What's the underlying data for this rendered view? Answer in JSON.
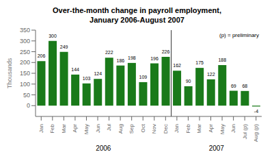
{
  "chart_data": {
    "type": "bar",
    "title": "Over-the-month change in payroll employment,\nJanuary 2006-August 2007",
    "categories": [
      "Jan",
      "Feb",
      "Mar",
      "Apr",
      "May",
      "Jun",
      "Jul",
      "Aug",
      "Sep",
      "Oct",
      "Nov",
      "Dec",
      "Jan",
      "Feb",
      "Mar",
      "Apr",
      "May",
      "Jun",
      "Jul (p)",
      "Aug (p)"
    ],
    "values": [
      206,
      300,
      249,
      144,
      103,
      124,
      222,
      186,
      198,
      109,
      196,
      226,
      162,
      90,
      175,
      122,
      188,
      69,
      68,
      -4
    ],
    "color": "#1a7a1a",
    "ylabel": "Thousands",
    "ylim": [
      -50,
      350
    ],
    "yticks": [
      0,
      50,
      100,
      150,
      200,
      250,
      300,
      350
    ],
    "annotations": [
      "(p) = preliminary"
    ],
    "x_groups": [
      {
        "label": "2006",
        "size": 12
      },
      {
        "label": "2007",
        "size": 8
      }
    ],
    "data_labels": true,
    "grid": false
  }
}
